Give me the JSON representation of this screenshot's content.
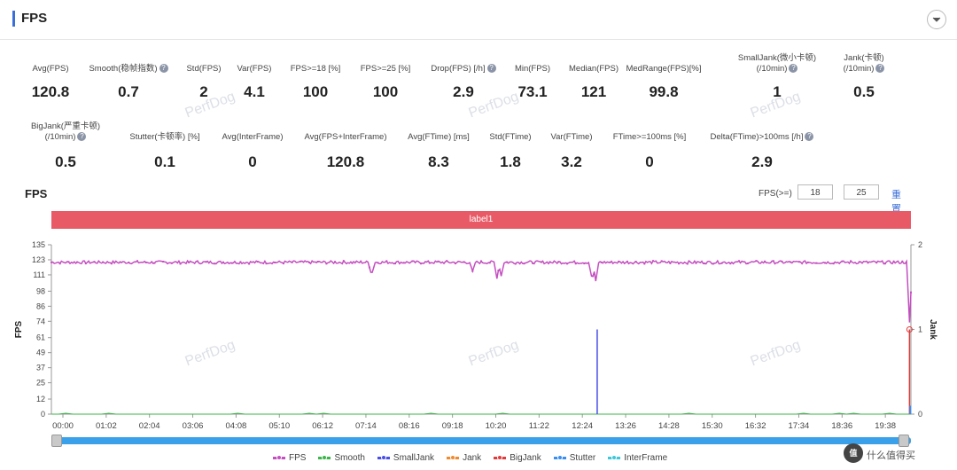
{
  "header": {
    "title": "FPS"
  },
  "metrics_row1": [
    {
      "label": "Avg(FPS)",
      "value": "120.8",
      "help": false
    },
    {
      "label": "Smooth(稳帧指数)",
      "value": "0.7",
      "help": true
    },
    {
      "label": "Std(FPS)",
      "value": "2",
      "help": false
    },
    {
      "label": "Var(FPS)",
      "value": "4.1",
      "help": false
    },
    {
      "label": "FPS>=18 [%]",
      "value": "100",
      "help": false
    },
    {
      "label": "FPS>=25 [%]",
      "value": "100",
      "help": false
    },
    {
      "label": "Drop(FPS) [/h]",
      "value": "2.9",
      "help": true
    },
    {
      "label": "Min(FPS)",
      "value": "73.1",
      "help": false
    },
    {
      "label": "Median(FPS)",
      "value": "121",
      "help": false
    },
    {
      "label": "MedRange(FPS)[%]",
      "value": "99.8",
      "help": false
    },
    {
      "label": "SmallJank(微小卡顿)",
      "label2": "(/10min)",
      "value": "1",
      "help": true
    },
    {
      "label": "Jank(卡顿)",
      "label2": "(/10min)",
      "value": "0.5",
      "help": true
    }
  ],
  "metrics_row2": [
    {
      "label": "BigJank(严重卡顿)",
      "label2": "(/10min)",
      "value": "0.5",
      "help": true
    },
    {
      "label": "Stutter(卡顿率) [%]",
      "value": "0.1",
      "help": false
    },
    {
      "label": "Avg(InterFrame)",
      "value": "0",
      "help": false
    },
    {
      "label": "Avg(FPS+InterFrame)",
      "value": "120.8",
      "help": false
    },
    {
      "label": "Avg(FTime) [ms]",
      "value": "8.3",
      "help": false
    },
    {
      "label": "Std(FTime)",
      "value": "1.8",
      "help": false
    },
    {
      "label": "Var(FTime)",
      "value": "3.2",
      "help": false
    },
    {
      "label": "FTime>=100ms [%]",
      "value": "0",
      "help": false
    },
    {
      "label": "Delta(FTime)>100ms [/h]",
      "value": "2.9",
      "help": true
    }
  ],
  "chart_section": {
    "title": "FPS",
    "filter_label": "FPS(>=)",
    "filter_value1": "18",
    "filter_value2": "25",
    "reset_label": "重置",
    "banner_label": "label1",
    "watermark": "PerfDog"
  },
  "chart_data": {
    "type": "line",
    "ylabel": "FPS",
    "y2label": "Jank",
    "yticks": [
      "135",
      "123",
      "111",
      "98",
      "86",
      "74",
      "61",
      "49",
      "37",
      "25",
      "12",
      "0"
    ],
    "y2ticks": [
      "2",
      "1",
      "0"
    ],
    "xticks": [
      "00:00",
      "01:02",
      "02:04",
      "03:06",
      "04:08",
      "05:10",
      "06:12",
      "07:14",
      "08:16",
      "09:18",
      "10:20",
      "11:22",
      "12:24",
      "13:26",
      "14:28",
      "15:30",
      "16:32",
      "17:34",
      "18:36",
      "19:38"
    ],
    "ylim": [
      0,
      135
    ],
    "y2lim": [
      0,
      2
    ],
    "series": [
      {
        "name": "FPS",
        "color": "#c44fc0",
        "baseline": 121,
        "dips": [
          {
            "t": 447,
            "v": 113
          },
          {
            "t": 588,
            "v": 114
          },
          {
            "t": 622,
            "v": 108
          },
          {
            "t": 628,
            "v": 110
          },
          {
            "t": 755,
            "v": 110
          },
          {
            "t": 760,
            "v": 106
          },
          {
            "t": 1198,
            "v": 73.1
          }
        ]
      },
      {
        "name": "Smooth",
        "color": "#3cb54a"
      },
      {
        "name": "SmallJank",
        "color": "#4a4ee8",
        "spikes": [
          {
            "t": 762,
            "v": 1
          }
        ]
      },
      {
        "name": "Jank",
        "color": "#f08a30"
      },
      {
        "name": "BigJank",
        "color": "#e03c3c",
        "spikes": [
          {
            "t": 1198,
            "v": 1
          }
        ]
      },
      {
        "name": "Stutter",
        "color": "#3a8ef0"
      },
      {
        "name": "InterFrame",
        "color": "#3fc8d8"
      }
    ]
  },
  "legend": [
    "FPS",
    "Smooth",
    "SmallJank",
    "Jank",
    "BigJank",
    "Stutter",
    "InterFrame"
  ],
  "corner": {
    "badge": "值",
    "text": "什么值得买"
  }
}
